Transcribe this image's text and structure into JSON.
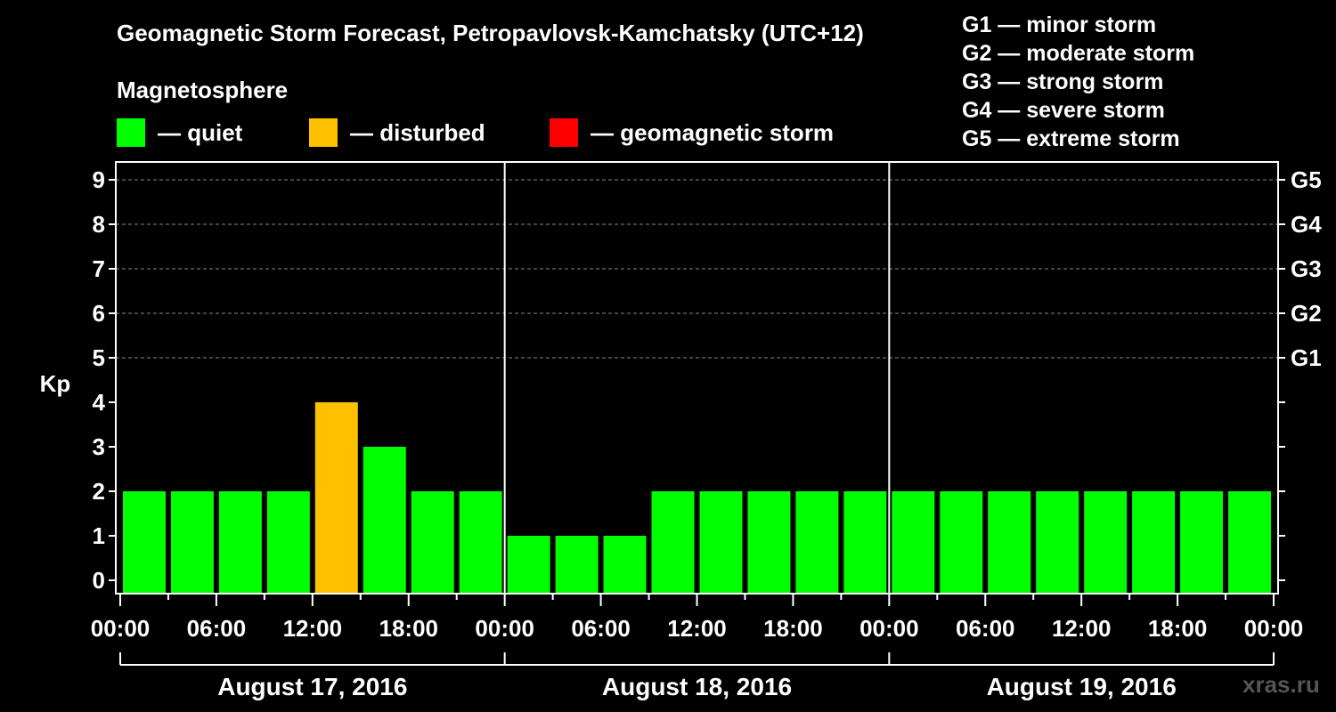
{
  "title": "Geomagnetic Storm Forecast, Petropavlovsk-Kamchatsky (UTC+12)",
  "magnetosphere_label": "Magnetosphere",
  "legend": [
    {
      "label": "— quiet",
      "color": "#00ff00"
    },
    {
      "label": "— disturbed",
      "color": "#ffc000"
    },
    {
      "label": "— geomagnetic storm",
      "color": "#ff0000"
    }
  ],
  "g_scale": [
    "G1 — minor storm",
    "G2 — moderate storm",
    "G3 — strong storm",
    "G4 — severe storm",
    "G5 — extreme storm"
  ],
  "watermark": "xras.ru",
  "chart_data": {
    "type": "bar",
    "ylabel": "Kp",
    "ylim": [
      0,
      9
    ],
    "yticks": [
      "0",
      "1",
      "2",
      "3",
      "4",
      "5",
      "6",
      "7",
      "8",
      "9"
    ],
    "right_ticks": [
      {
        "kp": 5,
        "label": "G1"
      },
      {
        "kp": 6,
        "label": "G2"
      },
      {
        "kp": 7,
        "label": "G3"
      },
      {
        "kp": 8,
        "label": "G4"
      },
      {
        "kp": 9,
        "label": "G5"
      }
    ],
    "grid": "horizontal dashed at Kp 5-9",
    "xtick_labels": [
      "00:00",
      "06:00",
      "12:00",
      "18:00",
      "00:00",
      "06:00",
      "12:00",
      "18:00",
      "00:00",
      "06:00",
      "12:00",
      "18:00",
      "00:00"
    ],
    "days": [
      "August 17, 2016",
      "August 18, 2016",
      "August 19, 2016"
    ],
    "bar_interval_hours": 3,
    "values": [
      2,
      2,
      2,
      2,
      4,
      3,
      2,
      2,
      1,
      1,
      1,
      2,
      2,
      2,
      2,
      2,
      2,
      2,
      2,
      2,
      2,
      2,
      2,
      2
    ],
    "colors": {
      "quiet": "#00ff00",
      "disturbed": "#ffc000",
      "storm": "#ff0000"
    }
  }
}
